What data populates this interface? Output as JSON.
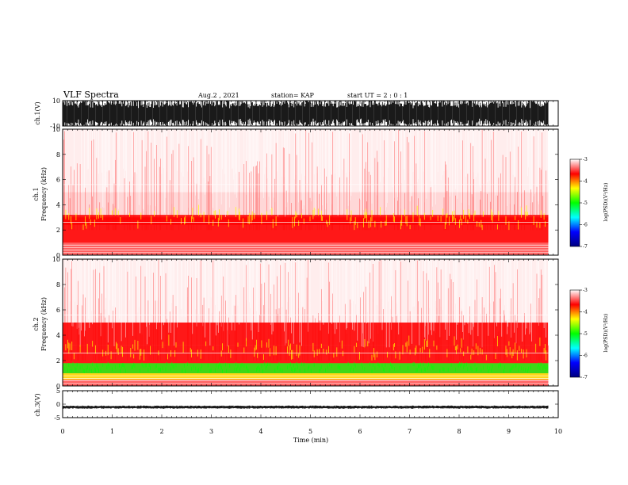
{
  "header": {
    "title": "VLF Spectra",
    "date": "Aug.2 , 2021",
    "station": "station= KAP",
    "start": "start UT = 2 : 0 : 1"
  },
  "colors": {
    "spectrogram_scale": [
      "#000080",
      "#0000ff",
      "#00ffff",
      "#00ff00",
      "#ffff00",
      "#ff0000",
      "#ffffff"
    ],
    "waveform": "#000000"
  },
  "chart_data": [
    {
      "id": "ch1-waveform",
      "type": "line",
      "ylabel": "ch.1(V)",
      "ylim": [
        -10,
        10
      ],
      "yticks": [
        "10",
        "-10"
      ],
      "xlim": [
        0,
        10
      ],
      "description_values": {
        "amplitude_range": [
          -10,
          10
        ],
        "dense": true
      }
    },
    {
      "id": "ch1-spectrogram",
      "type": "heatmap",
      "ylabel_line1": "ch.1",
      "ylabel_line2": "Frequency (kHz)",
      "ylim": [
        0,
        10
      ],
      "yticks": [
        "0",
        "2",
        "4",
        "6",
        "8",
        "10"
      ],
      "xlim": [
        0,
        10
      ],
      "colorbar": {
        "label": "log(PSD)(V²/Hz)",
        "range": [
          -7,
          -3
        ],
        "ticks": [
          "-3",
          "-4",
          "-5",
          "-6",
          "-7"
        ]
      },
      "bands": [
        {
          "freq_range": [
            1.0,
            3.2
          ],
          "level": -4.0
        },
        {
          "freq_range": [
            2.4,
            3.0
          ],
          "level": -3.7
        },
        {
          "freq_range": [
            3.2,
            5.5
          ],
          "level": -3.3
        },
        {
          "freq_range": [
            5.5,
            10.0
          ],
          "level": -3.1
        }
      ]
    },
    {
      "id": "ch2-spectrogram",
      "type": "heatmap",
      "ylabel_line1": "ch.2",
      "ylabel_line2": "Frequency (kHz)",
      "ylim": [
        0,
        10
      ],
      "yticks": [
        "0",
        "2",
        "4",
        "6",
        "8",
        "10"
      ],
      "xlim": [
        0,
        10
      ],
      "colorbar": {
        "label": "log(PSD)(V²/Hz)",
        "range": [
          -7,
          -3
        ],
        "ticks": [
          "-3",
          "-4",
          "-5",
          "-6",
          "-7"
        ]
      },
      "bands": [
        {
          "freq_range": [
            0.5,
            1.0
          ],
          "level": -4.2
        },
        {
          "freq_range": [
            1.0,
            1.8
          ],
          "level": -4.7
        },
        {
          "freq_range": [
            1.8,
            3.2
          ],
          "level": -4.0
        },
        {
          "freq_range": [
            3.2,
            5.0
          ],
          "level": -3.4
        },
        {
          "freq_range": [
            5.0,
            10.0
          ],
          "level": -3.1
        }
      ]
    },
    {
      "id": "ch3-waveform",
      "type": "line",
      "ylabel": "ch.3(V)",
      "ylim": [
        -5,
        5
      ],
      "yticks": [
        "5",
        "0",
        "-5"
      ],
      "xlim": [
        0,
        10
      ],
      "description_values": {
        "amplitude_range": [
          -1.4,
          -0.8
        ]
      }
    }
  ],
  "xaxis": {
    "label": "Time (min)",
    "ticks": [
      "0",
      "1",
      "2",
      "3",
      "4",
      "5",
      "6",
      "7",
      "8",
      "9",
      "10"
    ],
    "range": [
      0,
      10
    ]
  }
}
